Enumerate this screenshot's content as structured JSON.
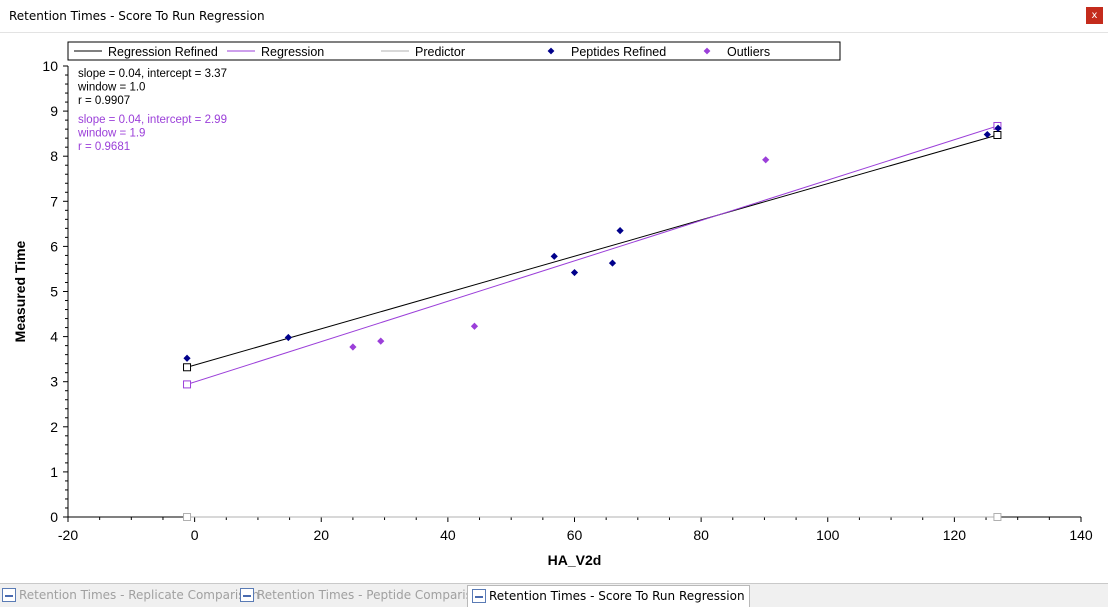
{
  "window": {
    "title": "Retention Times - Score To Run Regression",
    "close_label": "x"
  },
  "tabs": [
    {
      "label": "Retention Times - Replicate Comparison",
      "active": false
    },
    {
      "label": "Retention Times - Peptide Comparison",
      "active": false
    },
    {
      "label": "Retention Times - Score To Run Regression",
      "active": true
    }
  ],
  "chart_data": {
    "type": "scatter",
    "xlabel": "HA_V2d",
    "ylabel": "Measured Time",
    "xlim": [
      -20,
      140
    ],
    "ylim": [
      0,
      10
    ],
    "x_ticks": [
      "-20",
      "0",
      "20",
      "40",
      "60",
      "80",
      "100",
      "120",
      "140"
    ],
    "y_ticks": [
      "0",
      "1",
      "2",
      "3",
      "4",
      "5",
      "6",
      "7",
      "8",
      "9",
      "10"
    ],
    "legend": {
      "placement": "top",
      "entries": [
        {
          "label": "Regression Refined",
          "kind": "line",
          "color": "#000000"
        },
        {
          "label": "Regression",
          "kind": "line",
          "color": "#9b3fd9"
        },
        {
          "label": "Predictor",
          "kind": "line",
          "color": "#b0b0b0"
        },
        {
          "label": "Peptides Refined",
          "kind": "marker",
          "color": "#00008b"
        },
        {
          "label": "Outliers",
          "kind": "marker",
          "color": "#9b3fd9"
        }
      ]
    },
    "annotations": {
      "refined": [
        "slope = 0.04, intercept = 3.37",
        "window = 1.0",
        "r = 0.9907"
      ],
      "regression": [
        "slope = 0.04, intercept = 2.99",
        "window = 1.9",
        "r = 0.9681"
      ]
    },
    "series": [
      {
        "name": "Regression Refined",
        "kind": "line",
        "color": "#000000",
        "x": [
          -1.2,
          126.8
        ],
        "y": [
          3.32,
          8.47
        ]
      },
      {
        "name": "Regression",
        "kind": "line",
        "color": "#9b3fd9",
        "x": [
          -1.2,
          126.8
        ],
        "y": [
          2.94,
          8.67
        ]
      },
      {
        "name": "Predictor",
        "kind": "line",
        "color": "#b0b0b0",
        "x": [
          -1.2,
          126.8
        ],
        "y": [
          0,
          0
        ]
      },
      {
        "name": "Peptides Refined",
        "kind": "points",
        "color": "#00008b",
        "x": [
          -1.2,
          14.8,
          56.8,
          60.0,
          66.0,
          67.2,
          125.2,
          126.9
        ],
        "y": [
          3.52,
          3.98,
          5.78,
          5.42,
          5.63,
          6.35,
          8.48,
          8.62
        ]
      },
      {
        "name": "Outliers",
        "kind": "points",
        "color": "#9b3fd9",
        "x": [
          25.0,
          29.4,
          44.2,
          90.2
        ],
        "y": [
          3.77,
          3.9,
          4.23,
          7.92
        ]
      }
    ]
  }
}
